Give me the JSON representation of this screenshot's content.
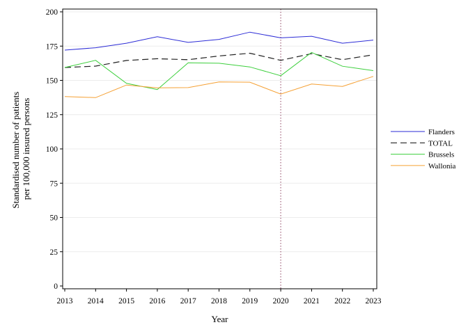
{
  "chart_data": {
    "type": "line",
    "title": "",
    "xlabel": "Year",
    "ylabel_lines": [
      "Standardised number of patients",
      "per 100,000 insured persons"
    ],
    "x": [
      2013,
      2014,
      2015,
      2016,
      2017,
      2018,
      2019,
      2020,
      2021,
      2022,
      2023
    ],
    "x_tick_labels": [
      "2013",
      "2014",
      "2015",
      "2016",
      "2017",
      "2018",
      "2019",
      "2020",
      "2021",
      "2022",
      "2023"
    ],
    "ylim": [
      0,
      200
    ],
    "y_ticks": [
      0,
      25,
      50,
      75,
      100,
      125,
      150,
      175,
      200
    ],
    "y_tick_labels": [
      "0",
      "25",
      "50",
      "75",
      "100",
      "125",
      "150",
      "175",
      "200"
    ],
    "grid": "horizontal",
    "reference_line": {
      "x": 2020,
      "color": "#a0607a",
      "style": "dotted"
    },
    "legend_position": "right",
    "series": [
      {
        "name": "Flanders",
        "color": "#2b2bd6",
        "dash": "solid",
        "values": [
          172.1,
          173.8,
          177.1,
          181.9,
          177.7,
          179.9,
          185.2,
          181.0,
          182.2,
          177.1,
          179.4
        ]
      },
      {
        "name": "TOTAL",
        "color": "#202020",
        "dash": "dashed",
        "values": [
          159.4,
          160.4,
          164.5,
          165.8,
          165.1,
          167.8,
          169.8,
          164.6,
          169.5,
          165.1,
          168.7
        ]
      },
      {
        "name": "Brussels",
        "color": "#3ccf3c",
        "dash": "solid",
        "values": [
          159.4,
          164.6,
          147.8,
          143.3,
          162.8,
          162.5,
          159.8,
          153.4,
          170.4,
          160.3,
          157.1
        ]
      },
      {
        "name": "Wallonia",
        "color": "#f5a033",
        "dash": "solid",
        "values": [
          138.2,
          137.4,
          146.6,
          144.5,
          144.7,
          148.9,
          148.7,
          140.0,
          147.3,
          145.6,
          152.9
        ]
      }
    ]
  }
}
